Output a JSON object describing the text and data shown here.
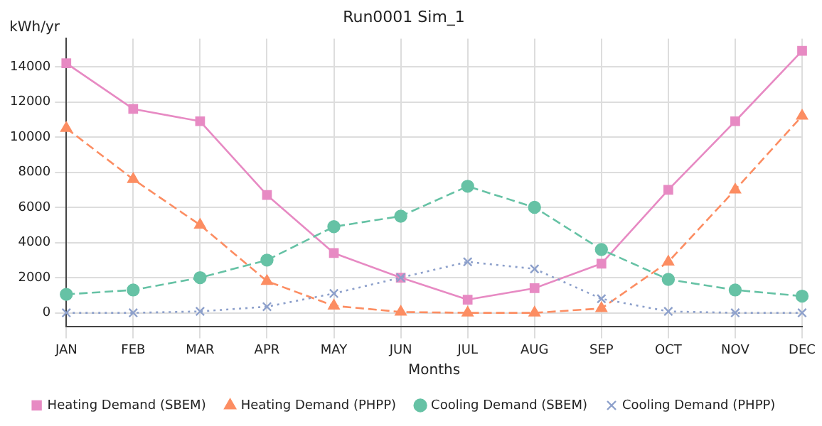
{
  "chart_data": {
    "type": "line",
    "title": "Run0001 Sim_1",
    "xlabel": "Months",
    "ylabel": "kWh/yr",
    "categories": [
      "JAN",
      "FEB",
      "MAR",
      "APR",
      "MAY",
      "JUN",
      "JUL",
      "AUG",
      "SEP",
      "OCT",
      "NOV",
      "DEC"
    ],
    "series": [
      {
        "name": "Heating Demand (SBEM)",
        "color": "#e78ac3",
        "marker": "square",
        "line_style": "solid",
        "values": [
          14200,
          11600,
          10900,
          6700,
          3400,
          2000,
          750,
          1400,
          2800,
          7000,
          10900,
          14900
        ]
      },
      {
        "name": "Heating Demand (PHPP)",
        "color": "#fc8d62",
        "marker": "triangle",
        "line_style": "dashed",
        "values": [
          10500,
          7600,
          5000,
          1800,
          400,
          50,
          0,
          0,
          250,
          2900,
          7000,
          11200
        ]
      },
      {
        "name": "Cooling Demand (SBEM)",
        "color": "#66c2a5",
        "marker": "circle",
        "line_style": "dashed",
        "values": [
          1050,
          1300,
          2000,
          3000,
          4900,
          5500,
          7200,
          6000,
          3600,
          1900,
          1300,
          950
        ]
      },
      {
        "name": "Cooling Demand (PHPP)",
        "color": "#8da0cb",
        "marker": "cross",
        "line_style": "dotted",
        "values": [
          0,
          0,
          80,
          350,
          1100,
          2000,
          2900,
          2500,
          800,
          80,
          0,
          0
        ]
      }
    ],
    "ylim": [
      -800,
      15600
    ],
    "yticks": [
      0,
      2000,
      4000,
      6000,
      8000,
      10000,
      12000,
      14000
    ],
    "grid": true,
    "legend": "bottom"
  }
}
